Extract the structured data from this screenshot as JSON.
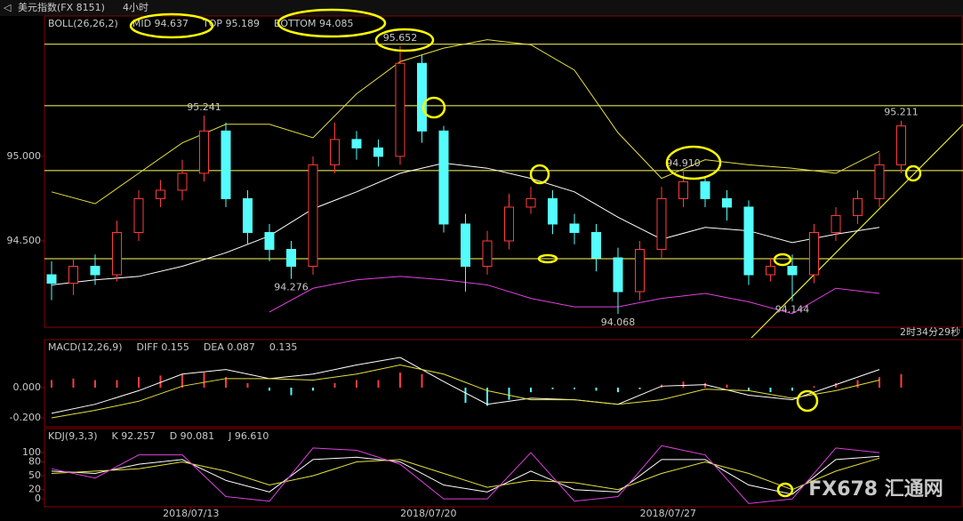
{
  "header": {
    "symbol": "美元指数(FX 8151)",
    "period": "4小时"
  },
  "status": "2时34分29秒",
  "watermark": "FX678 汇通网",
  "chart_data": [
    {
      "type": "candlestick",
      "legend": [
        {
          "text": "BOLL(26,26,2)",
          "color": "#e0e070"
        },
        {
          "text": "MID 94.637",
          "color": "#ffffff"
        },
        {
          "text": "TOP 95.189",
          "color": "#ffff40"
        },
        {
          "text": "BOTTOM 94.085",
          "color": "#ff40ff"
        }
      ],
      "up_color": "#ff3c3c",
      "down_color": "#54fcfc",
      "open": [
        94.3,
        94.25,
        94.35,
        94.3,
        94.55,
        94.75,
        94.8,
        94.9,
        95.15,
        94.75,
        94.55,
        94.45,
        94.35,
        94.95,
        95.1,
        95.05,
        95.0,
        95.55,
        95.15,
        94.6,
        94.35,
        94.5,
        94.7,
        94.75,
        94.6,
        94.55,
        94.4,
        94.2,
        94.45,
        94.75,
        94.85,
        94.75,
        94.7,
        94.3,
        94.35,
        94.3,
        94.55,
        94.65,
        94.75,
        94.95
      ],
      "high": [
        94.38,
        94.4,
        94.42,
        94.62,
        94.8,
        94.86,
        94.98,
        95.241,
        95.2,
        94.8,
        94.6,
        94.5,
        95.0,
        95.2,
        95.15,
        95.1,
        95.652,
        95.6,
        95.18,
        94.66,
        94.56,
        94.78,
        94.82,
        94.8,
        94.66,
        94.6,
        94.46,
        94.5,
        94.82,
        94.91,
        94.88,
        94.8,
        94.74,
        94.4,
        94.42,
        94.6,
        94.7,
        94.8,
        95.02,
        95.211
      ],
      "low": [
        94.15,
        94.18,
        94.24,
        94.26,
        94.5,
        94.7,
        94.74,
        94.85,
        94.7,
        94.48,
        94.38,
        94.276,
        94.3,
        94.9,
        94.98,
        94.94,
        94.95,
        95.08,
        94.55,
        94.2,
        94.3,
        94.45,
        94.66,
        94.54,
        94.48,
        94.32,
        94.068,
        94.15,
        94.4,
        94.7,
        94.7,
        94.62,
        94.24,
        94.26,
        94.144,
        94.25,
        94.5,
        94.6,
        94.7,
        94.9
      ],
      "close": [
        94.25,
        94.35,
        94.3,
        94.55,
        94.75,
        94.8,
        94.9,
        95.15,
        94.75,
        94.55,
        94.45,
        94.35,
        94.95,
        95.1,
        95.05,
        95.0,
        95.55,
        95.15,
        94.6,
        94.35,
        94.5,
        94.7,
        94.75,
        94.6,
        94.55,
        94.4,
        94.2,
        94.45,
        94.75,
        94.85,
        94.75,
        94.7,
        94.3,
        94.35,
        94.3,
        94.55,
        94.65,
        94.75,
        94.95,
        95.18
      ],
      "line_x": [
        0,
        2,
        4,
        6,
        8,
        10,
        12,
        14,
        16,
        18,
        20,
        22,
        24,
        26,
        28,
        30,
        32,
        34,
        36,
        38
      ],
      "series": [
        {
          "name": "MID",
          "color": "#ffffff",
          "values": [
            94.24,
            94.27,
            94.29,
            94.35,
            94.43,
            94.53,
            94.69,
            94.79,
            94.9,
            94.96,
            94.93,
            94.87,
            94.79,
            94.64,
            94.51,
            94.58,
            94.56,
            94.49,
            94.54,
            94.58
          ]
        },
        {
          "name": "TOP",
          "color": "#e6e040",
          "values": [
            94.79,
            94.72,
            94.9,
            95.08,
            95.19,
            95.19,
            95.11,
            95.37,
            95.56,
            95.64,
            95.69,
            95.66,
            95.51,
            95.14,
            94.87,
            94.98,
            94.95,
            94.93,
            94.9,
            95.03
          ]
        },
        {
          "name": "BOTTOM",
          "color": "#e040e0",
          "values": [
            null,
            null,
            null,
            null,
            null,
            94.08,
            94.22,
            94.27,
            94.29,
            94.27,
            94.24,
            94.16,
            94.11,
            94.11,
            94.16,
            94.19,
            94.14,
            94.07,
            94.22,
            94.19
          ]
        }
      ],
      "hlines": [
        95.663,
        95.3,
        94.916,
        94.395
      ],
      "hline_color": "#ffff60",
      "price_labels": [
        {
          "value": 95.652,
          "label": "95.652",
          "bar": 16,
          "position": "above",
          "color": "#ff5050"
        },
        {
          "value": 95.241,
          "label": "95.241",
          "bar": 7,
          "position": "above",
          "color": "#ff5050"
        },
        {
          "value": 94.276,
          "label": "94.276",
          "bar": 11,
          "position": "below",
          "color": "#54fcfc"
        },
        {
          "value": 94.068,
          "label": "94.068",
          "bar": 26,
          "position": "below",
          "color": "#54fcfc"
        },
        {
          "value": 94.91,
          "label": "94.910",
          "bar": 29,
          "position": "above",
          "color": "#ff5050"
        },
        {
          "value": 94.144,
          "label": "94.144",
          "bar": 34,
          "position": "below",
          "color": "#54fcfc"
        },
        {
          "value": 95.211,
          "label": "95.211",
          "bar": 39,
          "position": "above",
          "color": "#ff5050"
        }
      ],
      "ylim": [
        93.99,
        95.83
      ],
      "yticks": [
        {
          "value": 95,
          "label": "95.000"
        },
        {
          "value": 94.5,
          "label": "94.500"
        }
      ]
    },
    {
      "type": "bar",
      "legend": [
        {
          "text": "MACD(12,26,9)",
          "color": "#e0e0e0"
        },
        {
          "text": "DIFF 0.155",
          "color": "#ffffff"
        },
        {
          "text": "DEA 0.087",
          "color": "#ffff40"
        },
        {
          "text": "0.135",
          "color": "#ffffff"
        }
      ],
      "up_color": "#ff3c3c",
      "down_color": "#54fcfc",
      "values": [
        0.05,
        0.06,
        0.05,
        0.05,
        0.07,
        0.08,
        0.09,
        0.1,
        0.07,
        0.03,
        -0.02,
        -0.05,
        -0.02,
        0.03,
        0.05,
        0.05,
        0.1,
        0.09,
        0.0,
        -0.1,
        -0.12,
        -0.08,
        -0.03,
        -0.01,
        -0.01,
        -0.02,
        -0.03,
        -0.01,
        0.02,
        0.04,
        0.03,
        0.02,
        -0.02,
        -0.03,
        -0.02,
        0.01,
        0.03,
        0.05,
        0.07,
        0.09
      ],
      "line_x": [
        0,
        2,
        4,
        6,
        8,
        10,
        12,
        14,
        16,
        18,
        20,
        22,
        24,
        26,
        28,
        30,
        32,
        34,
        36,
        38
      ],
      "series": [
        {
          "name": "DIFF",
          "color": "#ffffff",
          "values": [
            -0.17,
            -0.11,
            -0.02,
            0.09,
            0.12,
            0.06,
            0.09,
            0.15,
            0.2,
            0.04,
            -0.11,
            -0.07,
            -0.08,
            -0.11,
            0.01,
            0.02,
            -0.05,
            -0.08,
            0.02,
            0.12
          ]
        },
        {
          "name": "DEA",
          "color": "#e6e040",
          "values": [
            -0.2,
            -0.15,
            -0.09,
            0.01,
            0.06,
            0.06,
            0.05,
            0.09,
            0.15,
            0.09,
            -0.02,
            -0.08,
            -0.08,
            -0.11,
            -0.08,
            -0.01,
            -0.02,
            -0.07,
            -0.02,
            0.05
          ]
        }
      ],
      "ylim": [
        -0.259,
        0.318
      ],
      "yticks": [
        {
          "value": 0,
          "label": "0.000"
        },
        {
          "value": -0.2,
          "label": "-0.200"
        }
      ]
    },
    {
      "type": "line",
      "legend": [
        {
          "text": "KDJ(9,3,3)",
          "color": "#e0e0e0"
        },
        {
          "text": "K 92.257",
          "color": "#ffffff"
        },
        {
          "text": "D 90.081",
          "color": "#ffff40"
        },
        {
          "text": "J 96.610",
          "color": "#ff40ff"
        }
      ],
      "line_x": [
        0,
        2,
        4,
        6,
        8,
        10,
        12,
        14,
        16,
        18,
        20,
        22,
        24,
        26,
        28,
        30,
        32,
        34,
        36,
        38
      ],
      "series": [
        {
          "name": "K",
          "color": "#ffffff",
          "values": [
            60,
            55,
            75,
            85,
            40,
            15,
            85,
            90,
            80,
            30,
            15,
            60,
            20,
            15,
            85,
            85,
            30,
            10,
            85,
            92
          ]
        },
        {
          "name": "D",
          "color": "#e6e040",
          "values": [
            55,
            60,
            65,
            80,
            60,
            30,
            50,
            80,
            85,
            55,
            25,
            40,
            35,
            20,
            55,
            80,
            55,
            20,
            60,
            88
          ]
        },
        {
          "name": "J",
          "color": "#e040e0",
          "values": [
            65,
            45,
            95,
            95,
            5,
            -5,
            110,
            105,
            75,
            0,
            0,
            100,
            -5,
            5,
            115,
            95,
            -10,
            0,
            110,
            100
          ]
        }
      ],
      "ylim": [
        -17,
        152
      ],
      "yticks": [
        100,
        80,
        50,
        20,
        0
      ],
      "xticks": [
        {
          "value": 6.4,
          "label": "2018/07/13"
        },
        {
          "value": 17.3,
          "label": "2018/07/20"
        },
        {
          "value": 28.3,
          "label": "2018/07/27"
        }
      ]
    }
  ]
}
